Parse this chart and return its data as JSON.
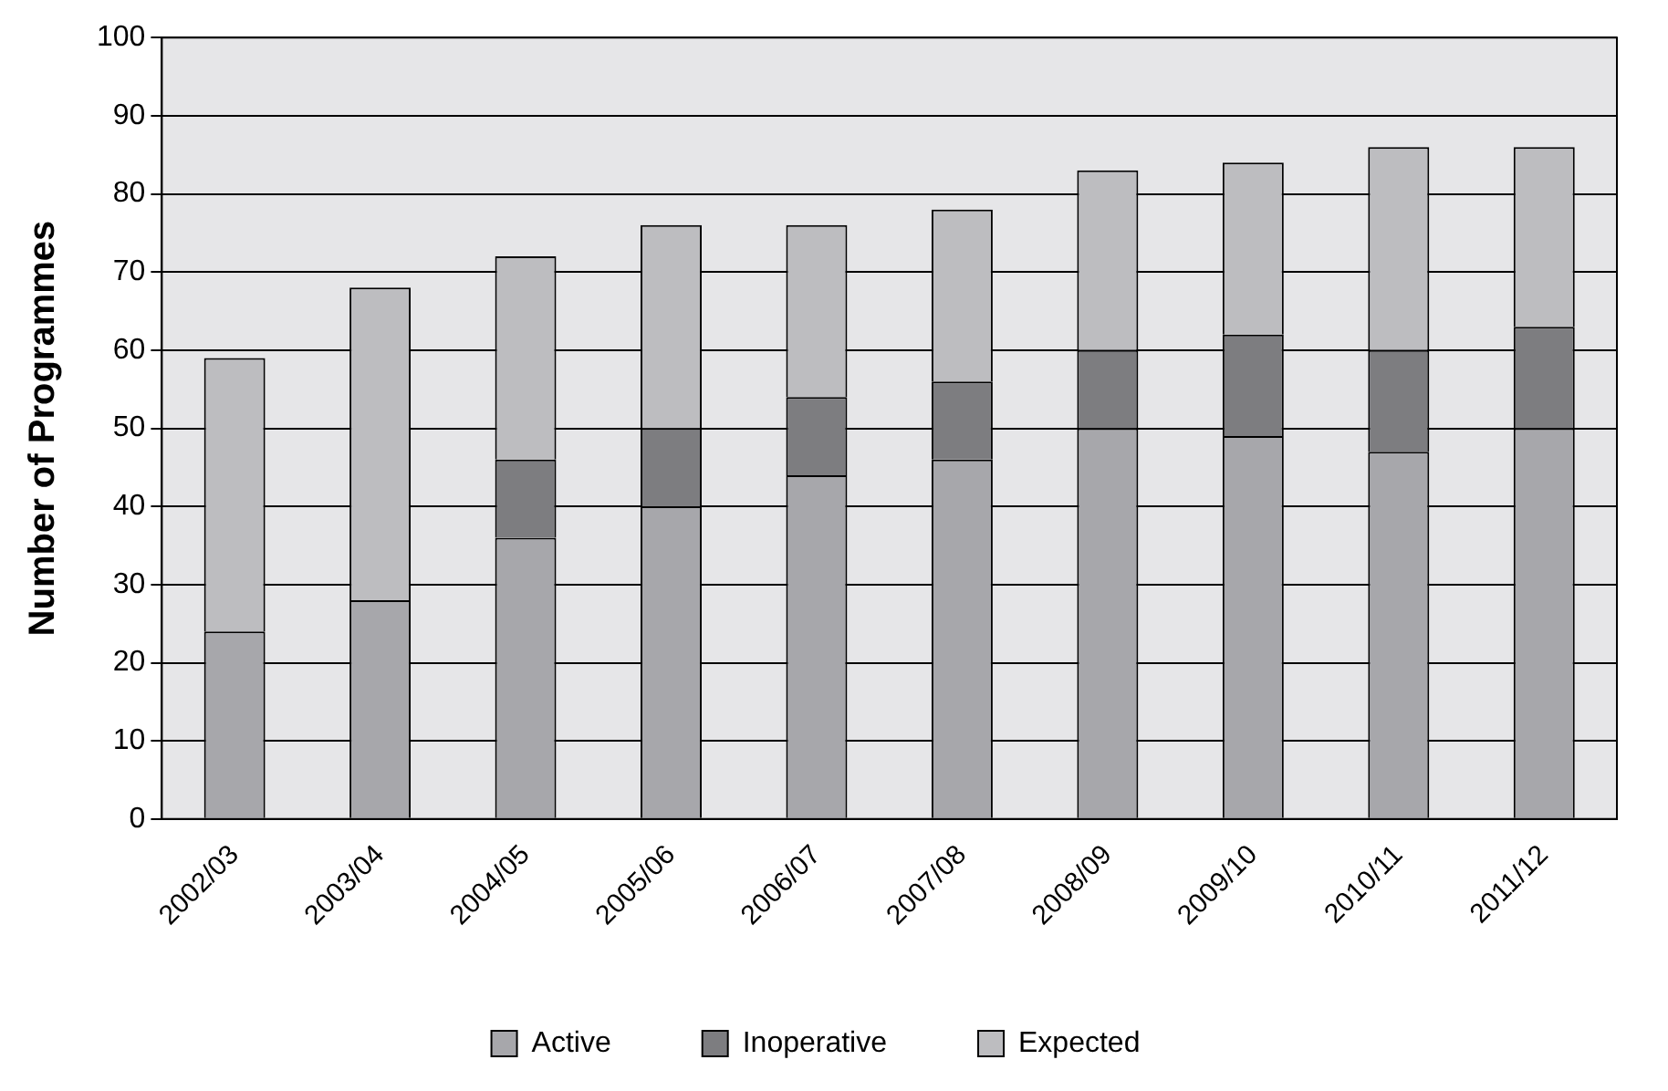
{
  "chart_data": {
    "type": "bar",
    "stacked": true,
    "ylabel": "Number of Programmes",
    "categories": [
      "2002/03",
      "2003/04",
      "2004/05",
      "2005/06",
      "2006/07",
      "2007/08",
      "2008/09",
      "2009/10",
      "2010/11",
      "2011/12"
    ],
    "series": [
      {
        "name": "Active",
        "color": "#a7a7ab",
        "values": [
          24,
          28,
          36,
          40,
          44,
          46,
          50,
          49,
          47,
          50
        ]
      },
      {
        "name": "Inoperative",
        "color": "#7d7d80",
        "values": [
          null,
          null,
          10,
          10,
          10,
          10,
          10,
          13,
          13,
          13
        ]
      },
      {
        "name": "Expected",
        "color": "#bdbdc0",
        "values": [
          35,
          40,
          26,
          26,
          22,
          22,
          23,
          22,
          26,
          23
        ]
      }
    ],
    "ylim": [
      0,
      100
    ],
    "yticks": [
      0,
      10,
      20,
      30,
      40,
      50,
      60,
      70,
      80,
      90,
      100
    ],
    "grid": "y",
    "legend": "bottom"
  }
}
